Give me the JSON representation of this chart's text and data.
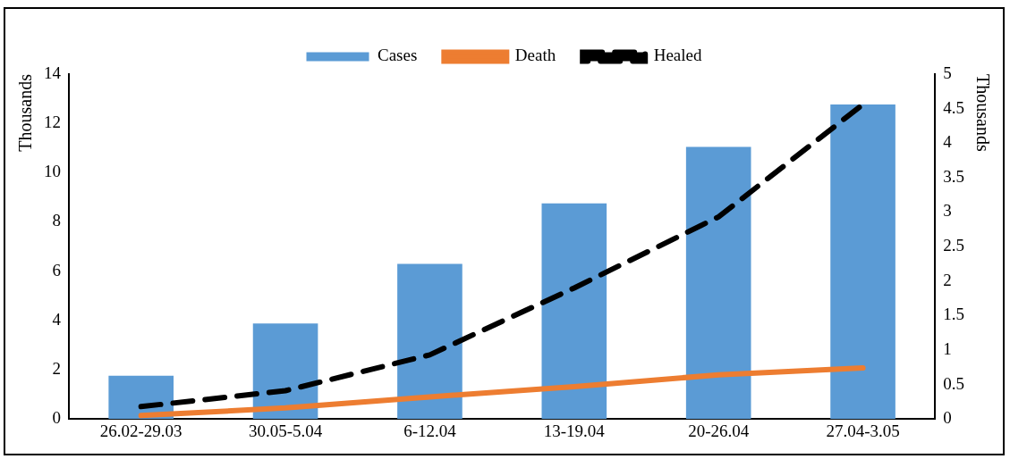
{
  "chart_data": {
    "type": "bar",
    "categories": [
      "26.02-29.03",
      "30.05-5.04",
      "6-12.04",
      "13-19.04",
      "20-26.04",
      "27.04-3.05"
    ],
    "ylabel": "Thousands",
    "y2label": "Thousands",
    "series": [
      {
        "name": "Cases",
        "color": "#5b9bd5",
        "values": [
          1.76,
          3.88,
          6.3,
          8.75,
          11.05,
          12.77
        ]
      },
      {
        "name": "Death",
        "type": "line",
        "axis": "y2",
        "color": "#ed7d31",
        "line_style": "solid",
        "values": [
          0.05,
          0.16,
          0.32,
          0.47,
          0.64,
          0.74
        ]
      },
      {
        "name": "Healed",
        "type": "line",
        "axis": "y2",
        "color": "#000000",
        "line_style": "dashed",
        "values": [
          0.18,
          0.41,
          0.93,
          1.9,
          2.93,
          4.56
        ]
      }
    ],
    "ylim": [
      0,
      14
    ],
    "yticks": [
      0,
      2,
      4,
      6,
      8,
      10,
      12,
      14
    ],
    "y2lim": [
      0,
      5
    ],
    "y2ticks": [
      0,
      0.5,
      1,
      1.5,
      2,
      2.5,
      3,
      3.5,
      4,
      4.5,
      5
    ],
    "grid": false,
    "legend": "top",
    "marker": "none"
  }
}
